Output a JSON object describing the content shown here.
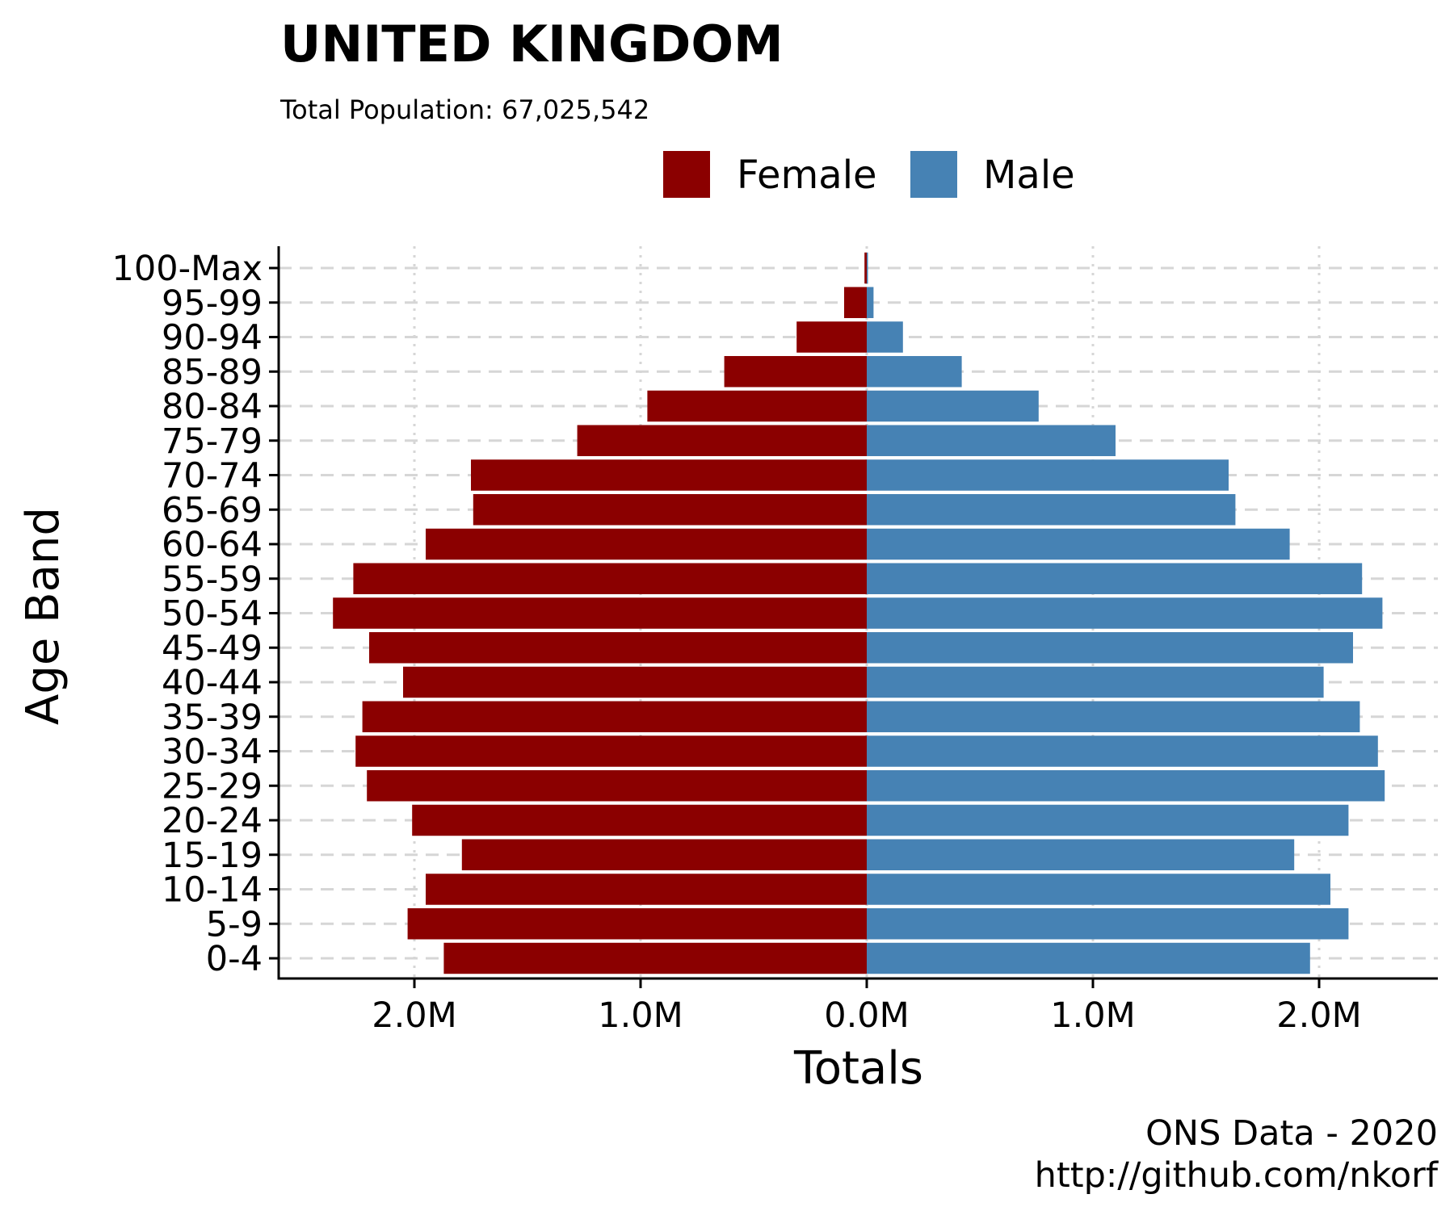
{
  "chart_data": {
    "type": "bar",
    "orientation": "horizontal-diverging",
    "title": "UNITED KINGDOM",
    "subtitle": "Total Population:  67,025,542",
    "xlabel": "Totals",
    "ylabel": "Age Band",
    "xlim": [
      -2.55,
      2.55
    ],
    "x_ticks": [
      -2,
      -1,
      0,
      1,
      2
    ],
    "x_tick_labels": [
      "2.0M",
      "1.0M",
      "0.0M",
      "1.0M",
      "2.0M"
    ],
    "grid": "dashed horizontal, dotted vertical",
    "legend_position": "top",
    "categories": [
      "0-4",
      "5-9",
      "10-14",
      "15-19",
      "20-24",
      "25-29",
      "30-34",
      "35-39",
      "40-44",
      "45-49",
      "50-54",
      "55-59",
      "60-64",
      "65-69",
      "70-74",
      "75-79",
      "80-84",
      "85-89",
      "90-94",
      "95-99",
      "100-Max"
    ],
    "series": [
      {
        "name": "Female",
        "color": "#8B0000",
        "values": [
          1.87,
          2.03,
          1.95,
          1.79,
          2.01,
          2.21,
          2.26,
          2.23,
          2.05,
          2.2,
          2.36,
          2.27,
          1.95,
          1.74,
          1.75,
          1.28,
          0.97,
          0.63,
          0.31,
          0.1,
          0.01
        ]
      },
      {
        "name": "Male",
        "color": "#4682B4",
        "values": [
          1.96,
          2.13,
          2.05,
          1.89,
          2.13,
          2.29,
          2.26,
          2.18,
          2.02,
          2.15,
          2.28,
          2.19,
          1.87,
          1.63,
          1.6,
          1.1,
          0.76,
          0.42,
          0.16,
          0.03,
          0.005
        ]
      }
    ],
    "caption": [
      "ONS Data - 2020",
      "http://github.com/nkorf"
    ]
  }
}
